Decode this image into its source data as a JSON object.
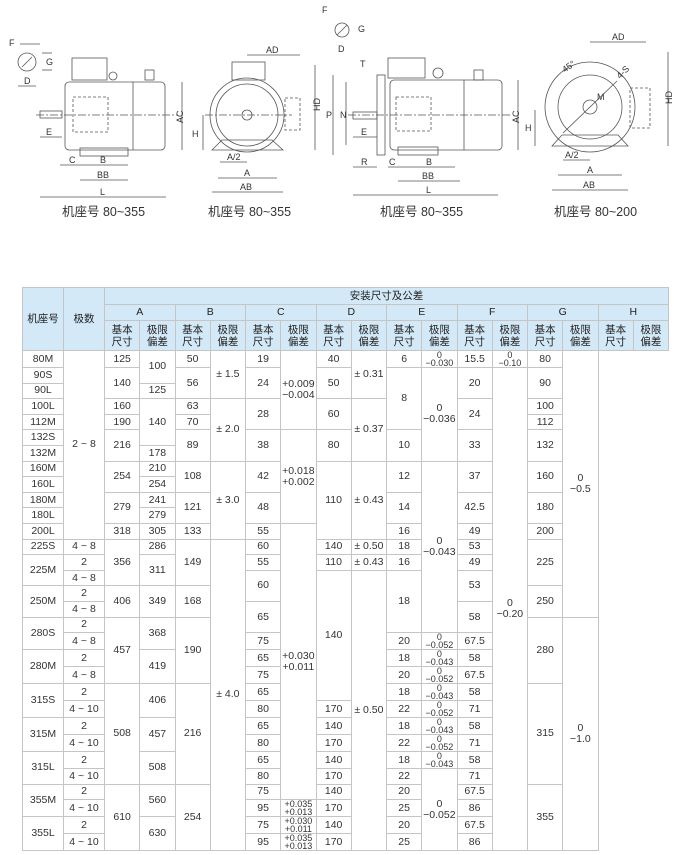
{
  "drawings": {
    "views": [
      {
        "caption": "机座号 80~355",
        "labels": [
          "F",
          "G",
          "D",
          "E",
          "C",
          "B",
          "BB",
          "L",
          "AC"
        ]
      },
      {
        "caption": "机座号 80~355",
        "labels": [
          "AD",
          "HD",
          "H",
          "A/2",
          "A",
          "AB"
        ]
      },
      {
        "caption": "机座号 80~355",
        "labels": [
          "F",
          "G",
          "D",
          "T",
          "P",
          "N",
          "E",
          "R",
          "C",
          "B",
          "BB",
          "L",
          "AC"
        ]
      },
      {
        "caption": "机座号 80~200",
        "labels": [
          "AD",
          "45°",
          "4-S",
          "M",
          "HD",
          "H",
          "A/2",
          "A",
          "AB"
        ]
      }
    ]
  },
  "table": {
    "title": "安装尺寸及公差",
    "frame_header": "机座号",
    "poles_header": "极数",
    "groups": [
      "A",
      "B",
      "C",
      "D",
      "E",
      "F",
      "G",
      "H"
    ],
    "basic_label": "基本\n尺寸",
    "tol_label": "极限\n偏差",
    "columns": [
      {
        "name": "frame",
        "cells": [
          {
            "v": "80M",
            "n": 1
          },
          {
            "v": "90S",
            "n": 1
          },
          {
            "v": "90L",
            "n": 1
          },
          {
            "v": "100L",
            "n": 1
          },
          {
            "v": "112M",
            "n": 1
          },
          {
            "v": "132S",
            "n": 1
          },
          {
            "v": "132M",
            "n": 1
          },
          {
            "v": "160M",
            "n": 1
          },
          {
            "v": "160L",
            "n": 1
          },
          {
            "v": "180M",
            "n": 1
          },
          {
            "v": "180L",
            "n": 1
          },
          {
            "v": "200L",
            "n": 1
          },
          {
            "v": "225S",
            "n": 1
          },
          {
            "v": "225M",
            "n": 2
          },
          {
            "v": "250M",
            "n": 2
          },
          {
            "v": "280S",
            "n": 2
          },
          {
            "v": "280M",
            "n": 2
          },
          {
            "v": "315S",
            "n": 2
          },
          {
            "v": "315M",
            "n": 2
          },
          {
            "v": "315L",
            "n": 2
          },
          {
            "v": "355M",
            "n": 2
          },
          {
            "v": "355L",
            "n": 2
          }
        ]
      },
      {
        "name": "poles",
        "cells": [
          {
            "v": "2 ~ 8",
            "n": 12
          },
          {
            "v": "4 ~ 8",
            "n": 1
          },
          {
            "v": "2",
            "n": 1
          },
          {
            "v": "4 ~ 8",
            "n": 1
          },
          {
            "v": "2",
            "n": 1
          },
          {
            "v": "4 ~ 8",
            "n": 1
          },
          {
            "v": "2",
            "n": 1
          },
          {
            "v": "4 ~ 8",
            "n": 1
          },
          {
            "v": "2",
            "n": 1
          },
          {
            "v": "4 ~ 8",
            "n": 1
          },
          {
            "v": "2",
            "n": 1
          },
          {
            "v": "4 ~ 10",
            "n": 1
          },
          {
            "v": "2",
            "n": 1
          },
          {
            "v": "4 ~ 10",
            "n": 1
          },
          {
            "v": "2",
            "n": 1
          },
          {
            "v": "4 ~ 10",
            "n": 1
          },
          {
            "v": "2",
            "n": 1
          },
          {
            "v": "4 ~ 10",
            "n": 1
          },
          {
            "v": "2",
            "n": 1
          },
          {
            "v": "4 ~ 10",
            "n": 1
          }
        ]
      },
      {
        "name": "A-basic",
        "cells": [
          {
            "v": "125",
            "n": 1
          },
          {
            "v": "140",
            "n": 2
          },
          {
            "v": "160",
            "n": 1
          },
          {
            "v": "190",
            "n": 1
          },
          {
            "v": "216",
            "n": 2
          },
          {
            "v": "254",
            "n": 2
          },
          {
            "v": "279",
            "n": 2
          },
          {
            "v": "318",
            "n": 1
          },
          {
            "v": "356",
            "n": 3
          },
          {
            "v": "406",
            "n": 2
          },
          {
            "v": "457",
            "n": 4
          },
          {
            "v": "508",
            "n": 6
          },
          {
            "v": "610",
            "n": 4
          }
        ]
      },
      {
        "name": "B-basic",
        "cells": [
          {
            "v": "100",
            "n": 2
          },
          {
            "v": "125",
            "n": 1
          },
          {
            "v": "140",
            "n": 3
          },
          {
            "v": "178",
            "n": 1
          },
          {
            "v": "210",
            "n": 1
          },
          {
            "v": "254",
            "n": 1
          },
          {
            "v": "241",
            "n": 1
          },
          {
            "v": "279",
            "n": 1
          },
          {
            "v": "305",
            "n": 1
          },
          {
            "v": "286",
            "n": 1
          },
          {
            "v": "311",
            "n": 2
          },
          {
            "v": "349",
            "n": 2
          },
          {
            "v": "368",
            "n": 2
          },
          {
            "v": "419",
            "n": 2
          },
          {
            "v": "406",
            "n": 2
          },
          {
            "v": "457",
            "n": 2
          },
          {
            "v": "508",
            "n": 2
          },
          {
            "v": "560",
            "n": 2
          },
          {
            "v": "630",
            "n": 2
          }
        ]
      },
      {
        "name": "C-basic",
        "cells": [
          {
            "v": "50",
            "n": 1
          },
          {
            "v": "56",
            "n": 2
          },
          {
            "v": "63",
            "n": 1
          },
          {
            "v": "70",
            "n": 1
          },
          {
            "v": "89",
            "n": 2
          },
          {
            "v": "108",
            "n": 2
          },
          {
            "v": "121",
            "n": 2
          },
          {
            "v": "133",
            "n": 1
          },
          {
            "v": "149",
            "n": 3
          },
          {
            "v": "168",
            "n": 2
          },
          {
            "v": "190",
            "n": 4
          },
          {
            "v": "216",
            "n": 6
          },
          {
            "v": "254",
            "n": 4
          }
        ]
      },
      {
        "name": "C-tol",
        "cells": [
          {
            "v": "± 1.5",
            "n": 3
          },
          {
            "v": "± 2.0",
            "n": 4
          },
          {
            "v": "± 3.0",
            "n": 5
          },
          {
            "v": "± 4.0",
            "n": 19
          }
        ]
      },
      {
        "name": "D-basic",
        "cells": [
          {
            "v": "19",
            "n": 1
          },
          {
            "v": "24",
            "n": 2
          },
          {
            "v": "28",
            "n": 2
          },
          {
            "v": "38",
            "n": 2
          },
          {
            "v": "42",
            "n": 2
          },
          {
            "v": "48",
            "n": 2
          },
          {
            "v": "55",
            "n": 1
          },
          {
            "v": "60",
            "n": 1
          },
          {
            "v": "55",
            "n": 1
          },
          {
            "v": "60",
            "n": 2
          },
          {
            "v": "65",
            "n": 2
          },
          {
            "v": "75",
            "n": 1
          },
          {
            "v": "65",
            "n": 1
          },
          {
            "v": "75",
            "n": 1
          },
          {
            "v": "65",
            "n": 1
          },
          {
            "v": "80",
            "n": 1
          },
          {
            "v": "65",
            "n": 1
          },
          {
            "v": "80",
            "n": 1
          },
          {
            "v": "65",
            "n": 1
          },
          {
            "v": "80",
            "n": 1
          },
          {
            "v": "75",
            "n": 1
          },
          {
            "v": "95",
            "n": 1
          },
          {
            "v": "75",
            "n": 1
          },
          {
            "v": "95",
            "n": 1
          }
        ]
      },
      {
        "name": "D-tol",
        "cells": [
          {
            "v": "+0.009\n−0.004",
            "n": 5
          },
          {
            "v": "+0.018\n+0.002",
            "n": 6
          },
          {
            "v": "+0.030\n+0.011",
            "n": 17
          },
          {
            "v": "+0.035\n+0.013",
            "n": 1,
            "s": 1
          },
          {
            "v": "+0.030\n+0.011",
            "n": 1,
            "s": 1
          },
          {
            "v": "+0.035\n+0.013",
            "n": 1,
            "s": 1
          }
        ]
      },
      {
        "name": "E-basic",
        "cells": [
          {
            "v": "40",
            "n": 1
          },
          {
            "v": "50",
            "n": 2
          },
          {
            "v": "60",
            "n": 2
          },
          {
            "v": "80",
            "n": 2
          },
          {
            "v": "110",
            "n": 5
          },
          {
            "v": "140",
            "n": 1
          },
          {
            "v": "110",
            "n": 1
          },
          {
            "v": "140",
            "n": 8
          },
          {
            "v": "170",
            "n": 1
          },
          {
            "v": "140",
            "n": 1
          },
          {
            "v": "170",
            "n": 1
          },
          {
            "v": "140",
            "n": 1
          },
          {
            "v": "170",
            "n": 1
          },
          {
            "v": "140",
            "n": 1
          },
          {
            "v": "170",
            "n": 1
          },
          {
            "v": "140",
            "n": 1
          },
          {
            "v": "170",
            "n": 1
          }
        ]
      },
      {
        "name": "E-tol",
        "cells": [
          {
            "v": "± 0.31",
            "n": 3
          },
          {
            "v": "± 0.37",
            "n": 4
          },
          {
            "v": "± 0.43",
            "n": 5
          },
          {
            "v": "± 0.50",
            "n": 1
          },
          {
            "v": "± 0.43",
            "n": 1
          },
          {
            "v": "± 0.50",
            "n": 17
          }
        ]
      },
      {
        "name": "F-basic",
        "cells": [
          {
            "v": "6",
            "n": 1
          },
          {
            "v": "8",
            "n": 4
          },
          {
            "v": "10",
            "n": 2
          },
          {
            "v": "12",
            "n": 2
          },
          {
            "v": "14",
            "n": 2
          },
          {
            "v": "16",
            "n": 1
          },
          {
            "v": "18",
            "n": 1
          },
          {
            "v": "16",
            "n": 1
          },
          {
            "v": "18",
            "n": 4
          },
          {
            "v": "20",
            "n": 1
          },
          {
            "v": "18",
            "n": 1
          },
          {
            "v": "20",
            "n": 1
          },
          {
            "v": "18",
            "n": 1
          },
          {
            "v": "22",
            "n": 1
          },
          {
            "v": "18",
            "n": 1
          },
          {
            "v": "22",
            "n": 1
          },
          {
            "v": "18",
            "n": 1
          },
          {
            "v": "22",
            "n": 1
          },
          {
            "v": "20",
            "n": 1
          },
          {
            "v": "25",
            "n": 1
          },
          {
            "v": "20",
            "n": 1
          },
          {
            "v": "25",
            "n": 1
          }
        ]
      },
      {
        "name": "F-tol",
        "cells": [
          {
            "v": "0\n−0.030",
            "n": 1,
            "s": 1
          },
          {
            "v": "0\n−0.036",
            "n": 6
          },
          {
            "v": "0\n−0.043",
            "n": 11
          },
          {
            "v": "0\n−0.052",
            "n": 1,
            "s": 1
          },
          {
            "v": "0\n−0.043",
            "n": 1,
            "s": 1
          },
          {
            "v": "0\n−0.052",
            "n": 1,
            "s": 1
          },
          {
            "v": "0\n−0.043",
            "n": 1,
            "s": 1
          },
          {
            "v": "0\n−0.052",
            "n": 1,
            "s": 1
          },
          {
            "v": "0\n−0.043",
            "n": 1,
            "s": 1
          },
          {
            "v": "0\n−0.052",
            "n": 1,
            "s": 1
          },
          {
            "v": "0\n−0.043",
            "n": 1,
            "s": 1
          },
          {
            "v": "0\n−0.052",
            "n": 5
          }
        ]
      },
      {
        "name": "G-basic",
        "cells": [
          {
            "v": "15.5",
            "n": 1
          },
          {
            "v": "20",
            "n": 2
          },
          {
            "v": "24",
            "n": 2
          },
          {
            "v": "33",
            "n": 2
          },
          {
            "v": "37",
            "n": 2
          },
          {
            "v": "42.5",
            "n": 2
          },
          {
            "v": "49",
            "n": 1
          },
          {
            "v": "53",
            "n": 1
          },
          {
            "v": "49",
            "n": 1
          },
          {
            "v": "53",
            "n": 2
          },
          {
            "v": "58",
            "n": 2
          },
          {
            "v": "67.5",
            "n": 1
          },
          {
            "v": "58",
            "n": 1
          },
          {
            "v": "67.5",
            "n": 1
          },
          {
            "v": "58",
            "n": 1
          },
          {
            "v": "71",
            "n": 1
          },
          {
            "v": "58",
            "n": 1
          },
          {
            "v": "71",
            "n": 1
          },
          {
            "v": "58",
            "n": 1
          },
          {
            "v": "71",
            "n": 1
          },
          {
            "v": "67.5",
            "n": 1
          },
          {
            "v": "86",
            "n": 1
          },
          {
            "v": "67.5",
            "n": 1
          },
          {
            "v": "86",
            "n": 1
          }
        ]
      },
      {
        "name": "G-tol",
        "cells": [
          {
            "v": "0\n−0.10",
            "n": 1,
            "s": 1
          },
          {
            "v": "0\n−0.20",
            "n": 30
          }
        ]
      },
      {
        "name": "H-basic",
        "cells": [
          {
            "v": "80",
            "n": 1
          },
          {
            "v": "90",
            "n": 2
          },
          {
            "v": "100",
            "n": 1
          },
          {
            "v": "112",
            "n": 1
          },
          {
            "v": "132",
            "n": 2
          },
          {
            "v": "160",
            "n": 2
          },
          {
            "v": "180",
            "n": 2
          },
          {
            "v": "200",
            "n": 1
          },
          {
            "v": "225",
            "n": 3
          },
          {
            "v": "250",
            "n": 2
          },
          {
            "v": "280",
            "n": 4
          },
          {
            "v": "315",
            "n": 6
          },
          {
            "v": "355",
            "n": 4
          }
        ]
      },
      {
        "name": "H-tol",
        "cells": [
          {
            "v": "0\n−0.5",
            "n": 17
          },
          {
            "v": "0\n−1.0",
            "n": 14
          }
        ]
      }
    ]
  }
}
